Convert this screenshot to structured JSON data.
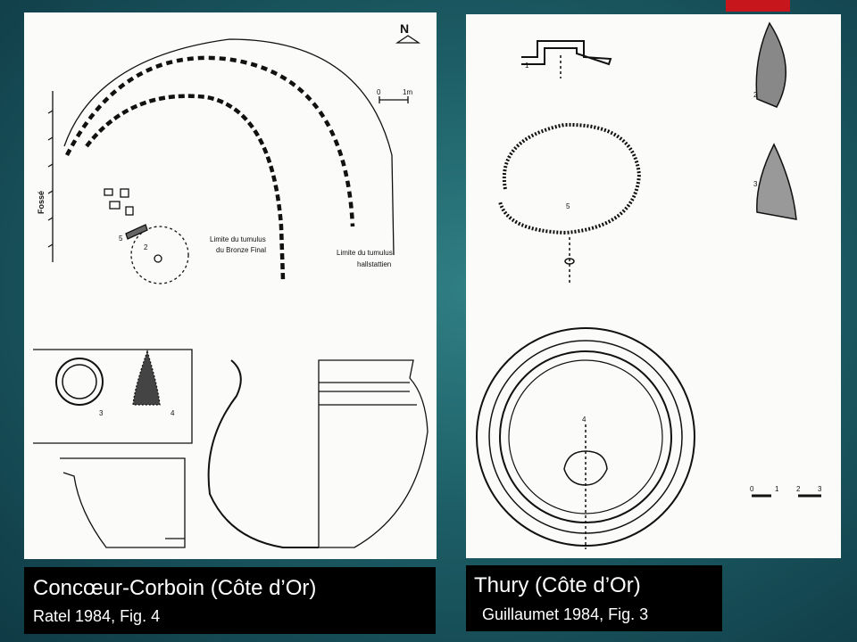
{
  "slide": {
    "accent_color": "#c8161d",
    "background_color": "#1d5e66"
  },
  "left_figure": {
    "north_label": "N",
    "scale_labels": [
      "0",
      "1m"
    ],
    "ditch_label": "Fossé",
    "bronze_limit_label": [
      "Limite du tumulus",
      "du Bronze Final"
    ],
    "hallstatt_limit_label": [
      "Limite du tumulus",
      "hallstattien"
    ],
    "find_numbers": [
      "5",
      "2",
      "3",
      "4"
    ],
    "caption_title": "Concœur-Corboin (Côte d’Or)",
    "caption_reference": "Ratel 1984, Fig. 4"
  },
  "right_figure": {
    "find_numbers": [
      "1",
      "2",
      "3",
      "5",
      "4"
    ],
    "scale_labels": [
      "0",
      "1",
      "2",
      "3"
    ],
    "caption_title": "Thury (Côte d’Or)",
    "caption_reference": "Guillaumet 1984, Fig. 3"
  }
}
